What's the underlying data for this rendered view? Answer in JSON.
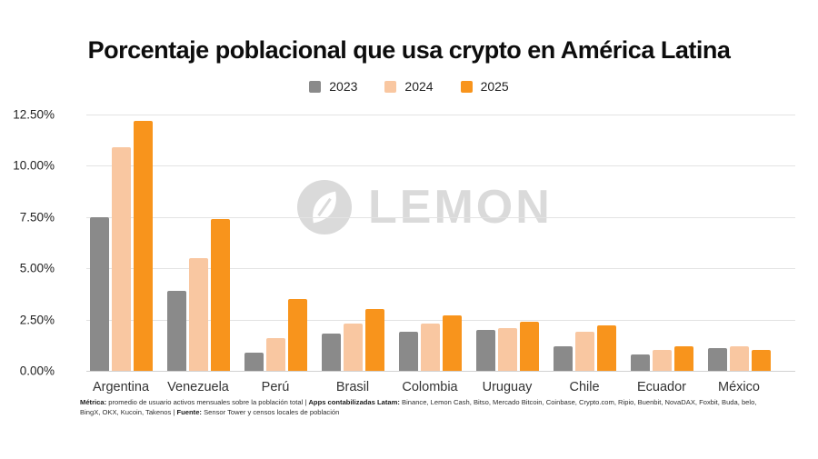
{
  "title": "Porcentaje poblacional que usa crypto en América Latina",
  "watermark": {
    "brand": "LEMON"
  },
  "chart_data": {
    "type": "bar",
    "title": "Porcentaje poblacional que usa crypto en América Latina",
    "categories": [
      "Argentina",
      "Venezuela",
      "Perú",
      "Brasil",
      "Colombia",
      "Uruguay",
      "Chile",
      "Ecuador",
      "México"
    ],
    "series": [
      {
        "name": "2023",
        "color": "#8a8a8a",
        "values": [
          7.5,
          3.9,
          0.9,
          1.8,
          1.9,
          2.0,
          1.2,
          0.8,
          1.1
        ]
      },
      {
        "name": "2024",
        "color": "#f9c7a1",
        "values": [
          10.9,
          5.5,
          1.6,
          2.3,
          2.3,
          2.1,
          1.9,
          1.0,
          1.2
        ]
      },
      {
        "name": "2025",
        "color": "#f8941c",
        "values": [
          12.2,
          7.4,
          3.5,
          3.0,
          2.7,
          2.4,
          2.2,
          1.2,
          1.0
        ]
      }
    ],
    "xlabel": "",
    "ylabel": "",
    "ylim": [
      0,
      12.5
    ],
    "yticks": [
      "12.50%",
      "10.00%",
      "7.50%",
      "5.00%",
      "2.50%",
      "0.00%"
    ],
    "grid": true,
    "legend_position": "top"
  },
  "footnote": {
    "metric_label": "Métrica:",
    "metric_text": " promedio de usuario activos mensuales sobre la población total | ",
    "apps_label": "Apps contabilizadas Latam:",
    "apps_text": " Binance, Lemon Cash, Bitso, Mercado Bitcoin, Coinbase, Crypto.com, Ripio, Buenbit, NovaDAX, Foxbit, Buda, belo,",
    "line2_text": "BingX, OKX, Kucoin, Takenos | ",
    "source_label": "Fuente:",
    "source_text": " Sensor Tower y censos locales de población"
  }
}
